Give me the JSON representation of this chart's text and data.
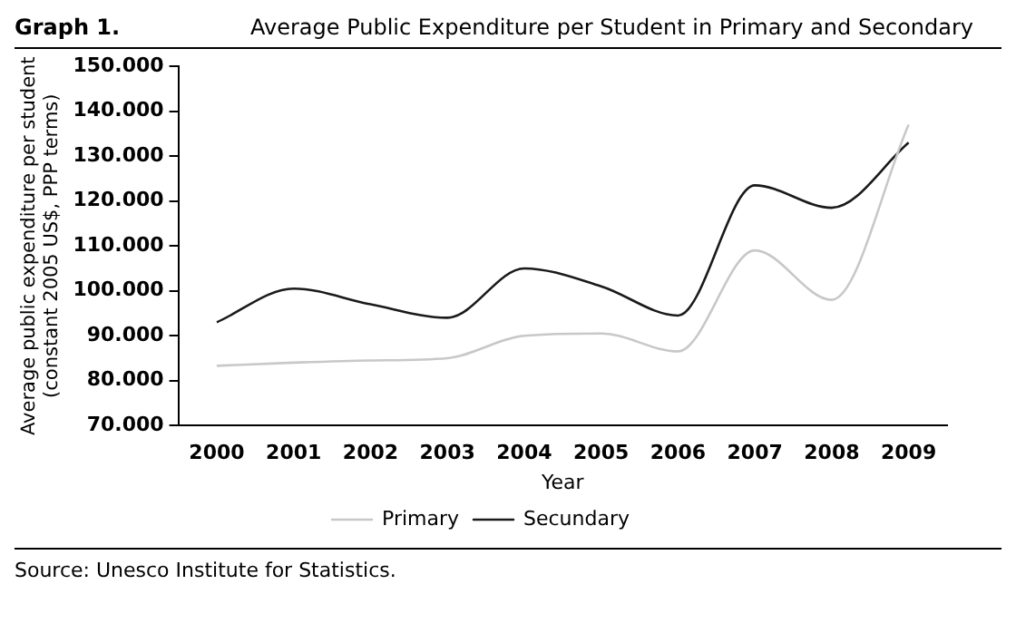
{
  "chart_data": {
    "type": "line",
    "title": "Average Public Expenditure per Student in Primary and Secondary",
    "xlabel": "Year",
    "ylabel": "Average public expenditure per student (constant 2005 US$, PPP terms)",
    "annotations": [
      "Graph 1.",
      "Source: Unesco Institute for Statistics."
    ],
    "categories": [
      "2000",
      "2001",
      "2002",
      "2003",
      "2004",
      "2005",
      "2006",
      "2007",
      "2008",
      "2009"
    ],
    "series": [
      {
        "name": "Primary",
        "color": "#c8c8c8",
        "values": [
          83300,
          84000,
          84500,
          85000,
          90000,
          90500,
          86500,
          109000,
          98000,
          137000
        ]
      },
      {
        "name": "Secundary",
        "color": "#1a1a1a",
        "values": [
          93000,
          100500,
          97000,
          94000,
          105000,
          101000,
          94500,
          123500,
          118500,
          133000
        ]
      }
    ],
    "ylim": [
      70000,
      150000
    ],
    "yticks": [
      {
        "value": 70000,
        "label": "70.000"
      },
      {
        "value": 80000,
        "label": "80.000"
      },
      {
        "value": 90000,
        "label": "90.000"
      },
      {
        "value": 100000,
        "label": "100.000"
      },
      {
        "value": 110000,
        "label": "110.000"
      },
      {
        "value": 120000,
        "label": "120.000"
      },
      {
        "value": 130000,
        "label": "130.000"
      },
      {
        "value": 140000,
        "label": "140.000"
      },
      {
        "value": 150000,
        "label": "150.000"
      }
    ],
    "grid": false,
    "legend": "bottom",
    "marker": "none",
    "line_style": "solid"
  }
}
